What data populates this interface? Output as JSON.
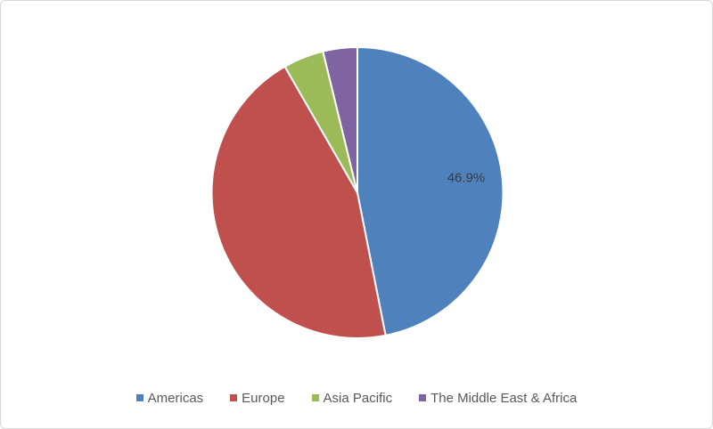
{
  "chart_data": {
    "type": "pie",
    "categories": [
      "Americas",
      "Europe",
      "Asia Pacific",
      "The Middle East & Africa"
    ],
    "values": [
      46.9,
      44.8,
      4.5,
      3.8
    ],
    "data_labels": [
      "46.9%",
      "",
      "",
      ""
    ],
    "colors": [
      "#4F81BD",
      "#C0504D",
      "#9BBB59",
      "#8064A2"
    ],
    "start_angle_deg": 0,
    "direction": "clockwise",
    "slice_border_color": "#FFFFFF",
    "data_label_color": "#3B3B3B",
    "legend_position": "bottom",
    "legend_text_color": "#595959",
    "frame_border_color": "#D7D7D7",
    "background_color": "#FFFFFF",
    "title": ""
  }
}
